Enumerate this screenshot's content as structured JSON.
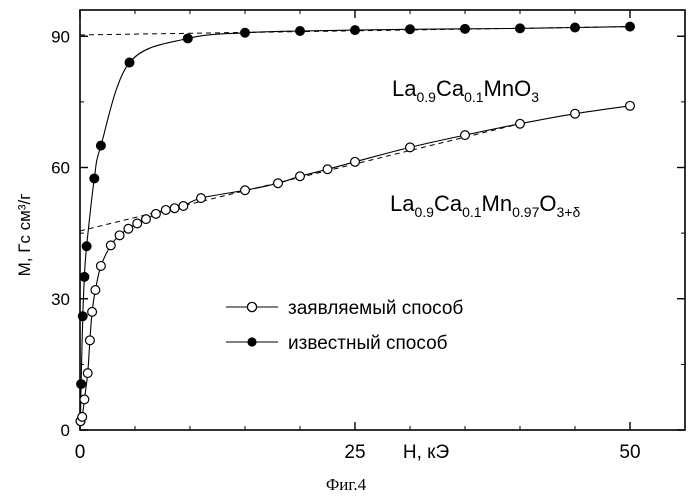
{
  "chart_data": {
    "type": "scatter",
    "caption": "Фиг.4",
    "ylabel": "M, Гс см³/г",
    "xlabel": "H, кЭ",
    "xlim": [
      0,
      55
    ],
    "ylim": [
      0,
      96
    ],
    "x_ticks": [
      {
        "value": 0,
        "label": "0"
      },
      {
        "value": 25,
        "label": "25"
      },
      {
        "value": 50,
        "label": "50"
      }
    ],
    "y_ticks": [
      {
        "value": 0,
        "label": "0"
      },
      {
        "value": 30,
        "label": "30"
      },
      {
        "value": 60,
        "label": "60"
      },
      {
        "value": 90,
        "label": "90"
      }
    ],
    "legend_position": "center-left",
    "series": [
      {
        "name": "известный способ",
        "marker": "filled-circle",
        "curve_label": {
          "base1": "La",
          "sub1": "0.9",
          "base2": "Ca",
          "sub2": "0.1",
          "base3": "MnO",
          "sub3": "3"
        },
        "points": [
          [
            0.05,
            2
          ],
          [
            0.1,
            10.5
          ],
          [
            0.25,
            26
          ],
          [
            0.4,
            35
          ],
          [
            0.6,
            42
          ],
          [
            1.3,
            57.5
          ],
          [
            1.9,
            65
          ],
          [
            4.5,
            84
          ],
          [
            9.8,
            89.5
          ],
          [
            15,
            90.8
          ],
          [
            20,
            91.2
          ],
          [
            25,
            91.4
          ],
          [
            30,
            91.6
          ],
          [
            35,
            91.7
          ],
          [
            40,
            91.8
          ],
          [
            45,
            92
          ],
          [
            50,
            92.2
          ]
        ],
        "asymptote": [
          [
            0,
            90.3
          ],
          [
            50,
            92.2
          ]
        ]
      },
      {
        "name": "заявляемый способ",
        "marker": "open-circle",
        "curve_label": {
          "base1": "La",
          "sub1": "0.9",
          "base2": "Ca",
          "sub2": "0.1",
          "base3": "Mn",
          "sub3": "0.97",
          "base4": "O",
          "sub4": "3+δ"
        },
        "points": [
          [
            0.05,
            2
          ],
          [
            0.2,
            3
          ],
          [
            0.4,
            7
          ],
          [
            0.7,
            13
          ],
          [
            0.9,
            20.5
          ],
          [
            1.1,
            27
          ],
          [
            1.4,
            32
          ],
          [
            1.9,
            37.5
          ],
          [
            2.8,
            42.2
          ],
          [
            3.6,
            44.5
          ],
          [
            4.4,
            46
          ],
          [
            5.2,
            47.2
          ],
          [
            6,
            48.2
          ],
          [
            6.9,
            49.4
          ],
          [
            7.8,
            50.3
          ],
          [
            8.6,
            50.7
          ],
          [
            9.4,
            51.2
          ],
          [
            11,
            53
          ],
          [
            15,
            54.8
          ],
          [
            18,
            56.4
          ],
          [
            20,
            58
          ],
          [
            22.5,
            59.6
          ],
          [
            25,
            61.3
          ],
          [
            30,
            64.6
          ],
          [
            35,
            67.4
          ],
          [
            40,
            70
          ],
          [
            45,
            72.3
          ],
          [
            50,
            74.1
          ]
        ],
        "asymptote": [
          [
            0,
            45.5
          ],
          [
            40,
            70
          ]
        ]
      }
    ]
  }
}
